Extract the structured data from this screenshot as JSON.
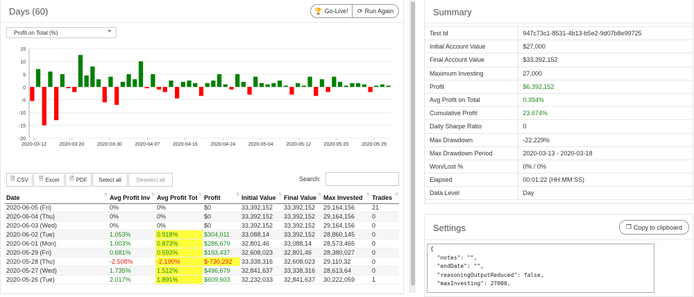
{
  "days_panel": {
    "title": "Days (60)",
    "go_live_label": "Go-Live!",
    "run_again_label": "Run Again",
    "metric_select": "Profit on Total (%)"
  },
  "chart_data": {
    "type": "bar",
    "ylim": [
      -20,
      15
    ],
    "yticks": [
      "15",
      "10",
      "5",
      "0",
      "-5",
      "-10",
      "-15",
      "-20"
    ],
    "xticks": [
      "2020-03-12",
      "2020-03-20",
      "2020-03-30",
      "2020-04-07",
      "2020-04-16",
      "2020-04-24",
      "2020-05-04",
      "2020-05-12",
      "2020-05-20",
      "2020-05-29"
    ],
    "positive_color": "#008000",
    "negative_color": "#ff0000",
    "values": [
      -5.5,
      7,
      -15,
      6,
      -13,
      5,
      -0.5,
      -2,
      12.5,
      4.5,
      8,
      3,
      -6,
      4,
      -7,
      2,
      5,
      3,
      10,
      -0.5,
      5,
      -1,
      -2,
      2.5,
      -4.5,
      2,
      2.5,
      1.5,
      -3.5,
      1.5,
      2.5,
      5,
      1,
      -1,
      5,
      2,
      -3,
      4,
      1.5,
      1,
      1.5,
      2.5,
      0.5,
      -3,
      1.5,
      0.5,
      4,
      -3.5,
      3,
      -2,
      4,
      2,
      0.5,
      1.5,
      1.5,
      1,
      -2,
      0.5,
      1,
      0.5
    ]
  },
  "table_tools": {
    "csv_label": "CSV",
    "excel_label": "Excel",
    "pdf_label": "PDF",
    "select_all_label": "Select all",
    "deselect_all_label": "Deselect all",
    "search_label": "Search:"
  },
  "table": {
    "headers": [
      "Date",
      "Avg Profit Inv",
      "Avg Profit Tot",
      "Profit",
      "Initial Value",
      "Final Value",
      "Max Invested",
      "Trades"
    ],
    "rows": [
      [
        "2020-06-05 (Fri)",
        "0%",
        "0%",
        "$0",
        "33,392,152",
        "33,392,152",
        "29,164,156",
        "21"
      ],
      [
        "2020-06-04 (Thu)",
        "0%",
        "0%",
        "$0",
        "33,392,152",
        "33,392,152",
        "29,164,156",
        "0"
      ],
      [
        "2020-06-03 (Wed)",
        "0%",
        "0%",
        "$0",
        "33,392,152",
        "33,392,152",
        "29,164,156",
        "0"
      ],
      [
        "2020-06-02 (Tue)",
        "1.053%",
        "0.918%",
        "$304,011",
        "33,088,14",
        "33,392,152",
        "28,860,145",
        "0"
      ],
      [
        "2020-06-01 (Mon)",
        "1.003%",
        "0.873%",
        "$286,679",
        "32,801,46",
        "33,088,14",
        "28,573,465",
        "0"
      ],
      [
        "2020-05-29 (Fri)",
        "0.681%",
        "0.593%",
        "$193,437",
        "32,608,023",
        "32,801,46",
        "28,380,027",
        "0"
      ],
      [
        "2020-05-28 (Thu)",
        "-2.508%",
        "-2.190%",
        "$-730,292",
        "33,338,316",
        "32,608,023",
        "29,110,32",
        "0"
      ],
      [
        "2020-05-27 (Wed)",
        "1.735%",
        "1.512%",
        "$496,679",
        "32,841,637",
        "33,338,316",
        "28,613,64",
        "0"
      ],
      [
        "2020-05-26 (Tue)",
        "2.017%",
        "1.891%",
        "$609,603",
        "32,232,033",
        "32,841,637",
        "30,222,059",
        "1"
      ]
    ]
  },
  "summary": {
    "title": "Summary",
    "rows": [
      [
        "Test Id",
        "947c73c1-8531-4b13-b5e2-9d07b8e99725"
      ],
      [
        "Initial Account Value",
        "$27,000"
      ],
      [
        "Final Account Value",
        "$33,392,152"
      ],
      [
        "Maximum Investing",
        "27,000"
      ],
      [
        "Profit",
        "$6,392,152"
      ],
      [
        "Avg Profit on Total",
        "0.394%"
      ],
      [
        "Cumulative Profit",
        "23.674%"
      ],
      [
        "Daily Sharpe Ratio",
        "0"
      ],
      [
        "Max Drawdown",
        "-22.229%"
      ],
      [
        "Max Drawdown Period",
        "2020-03-13 - 2020-03-18"
      ],
      [
        "Won/Lost %",
        "0% / 0%"
      ],
      [
        "Elapsed",
        "00:01:22 (HH:MM:SS)"
      ],
      [
        "Data Level",
        "Day"
      ]
    ]
  },
  "settings": {
    "title": "Settings",
    "copy_label": "Copy to clipboard",
    "code_lines": [
      "{",
      "  \"notes\": \"\",",
      "  \"endDate\": \"\",",
      "  \"reasoningOutputReduced\": false,",
      "  \"maxInvesting\": 27000,"
    ]
  }
}
